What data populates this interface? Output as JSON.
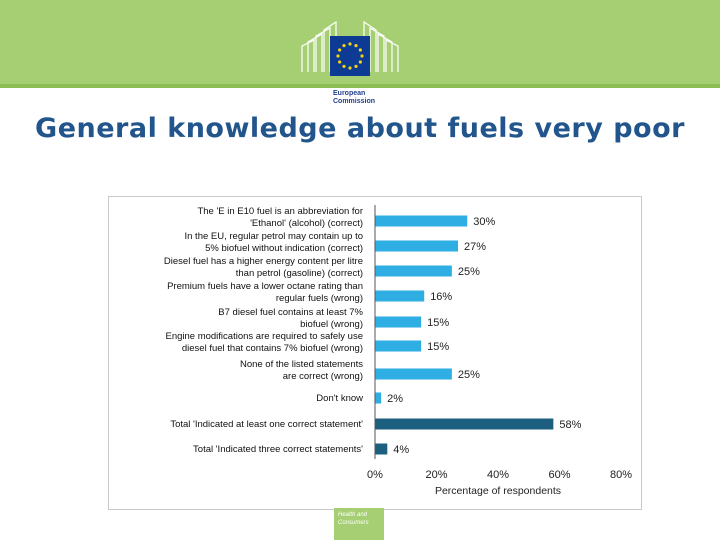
{
  "logo": {
    "line1": "European",
    "line2": "Commission"
  },
  "title": "General knowledge about fuels very poor",
  "footer": {
    "line1": "Health and",
    "line2": "Consumers"
  },
  "colors": {
    "band": "#a5cf72",
    "bar_light": "#2eaee3",
    "bar_dark": "#1c5f7e",
    "title": "#21558c"
  },
  "chart_data": {
    "type": "bar",
    "orientation": "horizontal",
    "categories": [
      [
        "The 'E in E10 fuel is an abbreviation for",
        "'Ethanol' (alcohol) (correct)"
      ],
      [
        "In the EU, regular petrol may contain up to",
        "5% biofuel without indication (correct)"
      ],
      [
        "Diesel fuel has a higher energy content per litre",
        "than petrol (gasoline) (correct)"
      ],
      [
        "Premium fuels have a lower octane rating than",
        "regular fuels (wrong)"
      ],
      [
        "B7 diesel fuel contains at least 7%",
        "biofuel (wrong)"
      ],
      [
        "Engine modifications are required to safely use",
        "diesel fuel that contains 7% biofuel (wrong)"
      ],
      [
        "None of the listed statements",
        "are correct (wrong)"
      ],
      [
        "Don't know"
      ],
      [
        "Total 'Indicated at least one correct statement'"
      ],
      [
        "Total 'Indicated three correct statements'"
      ]
    ],
    "values": [
      30,
      27,
      25,
      16,
      15,
      15,
      25,
      2,
      58,
      4
    ],
    "value_labels": [
      "30%",
      "27%",
      "25%",
      "16%",
      "15%",
      "15%",
      "25%",
      "2%",
      "58%",
      "4%"
    ],
    "highlight": [
      false,
      false,
      false,
      false,
      false,
      false,
      false,
      false,
      true,
      true
    ],
    "xlim": [
      0,
      80
    ],
    "xticks": [
      "0%",
      "20%",
      "40%",
      "60%",
      "80%"
    ],
    "xlabel": "Percentage of respondents",
    "ylabel": "",
    "grid": false,
    "legend": "none"
  }
}
